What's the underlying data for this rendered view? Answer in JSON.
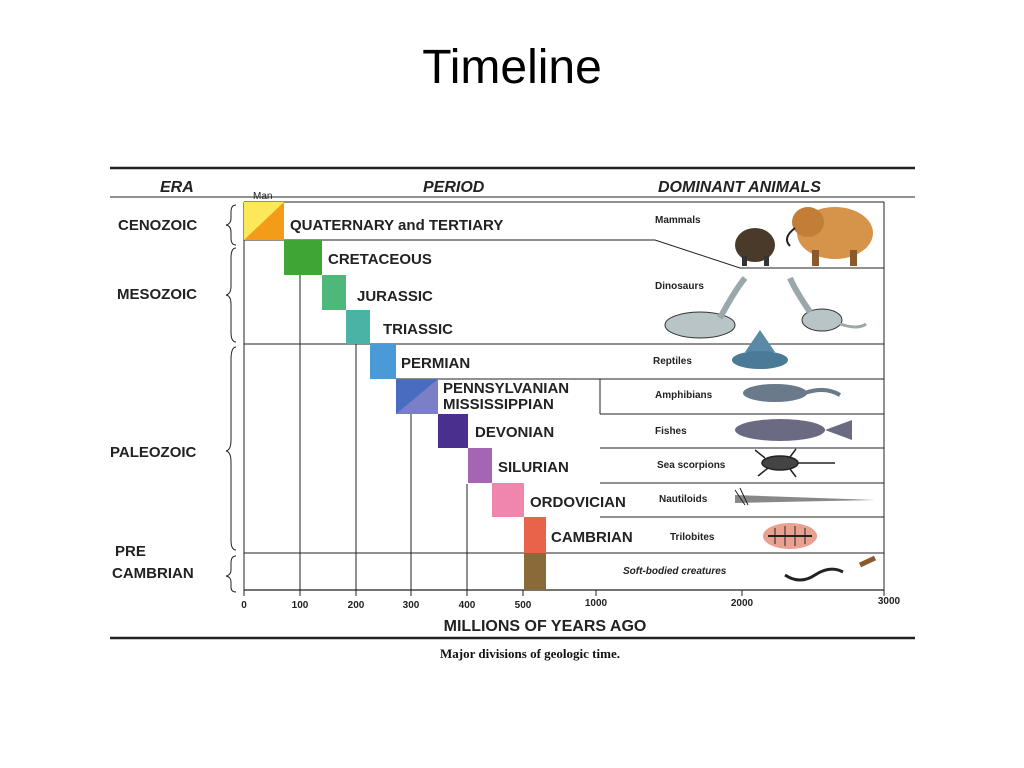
{
  "slide": {
    "title": "Timeline"
  },
  "header": {
    "era": "ERA",
    "man": "Man",
    "period": "PERIOD",
    "animals": "DOMINANT ANIMALS"
  },
  "eras": [
    {
      "name": "CENOZOIC"
    },
    {
      "name": "MESOZOIC"
    },
    {
      "name": "PALEOZOIC"
    },
    {
      "name": "PRE CAMBRIAN",
      "lines": [
        "PRE",
        "CAMBRIAN"
      ]
    }
  ],
  "periods": [
    {
      "name": "QUATERNARY and TERTIARY",
      "color": "#f4c430"
    },
    {
      "name": "CRETACEOUS",
      "color": "#3fa535"
    },
    {
      "name": "JURASSIC",
      "color": "#4db879"
    },
    {
      "name": "TRIASSIC",
      "color": "#4bb3a5"
    },
    {
      "name": "PERMIAN",
      "color": "#4a9ad8"
    },
    {
      "name": "PENNSYLVANIAN MISSISSIPPIAN",
      "lines": [
        "PENNSYLVANIAN",
        "MISSISSIPPIAN"
      ],
      "color": "#4a6cc0"
    },
    {
      "name": "DEVONIAN",
      "color": "#4b2f8f"
    },
    {
      "name": "SILURIAN",
      "color": "#a665b2"
    },
    {
      "name": "ORDOVICIAN",
      "color": "#ef86ad"
    },
    {
      "name": "CAMBRIAN",
      "color": "#e8634a"
    },
    {
      "name": "",
      "color": "#8b6a3a"
    }
  ],
  "animals": [
    {
      "name": "Mammals",
      "icon": "mammoth-icon"
    },
    {
      "name": "Dinosaurs",
      "icon": "dinosaur-icon"
    },
    {
      "name": "Reptiles",
      "icon": "reptile-icon"
    },
    {
      "name": "Amphibians",
      "icon": "amphibian-icon"
    },
    {
      "name": "Fishes",
      "icon": "fish-icon"
    },
    {
      "name": "Sea scorpions",
      "icon": "sea-scorpion-icon"
    },
    {
      "name": "Nautiloids",
      "icon": "nautiloid-icon"
    },
    {
      "name": "Trilobites",
      "icon": "trilobite-icon"
    },
    {
      "name": "Soft-bodied creatures",
      "icon": "worm-icon"
    }
  ],
  "axis": {
    "ticks": [
      "0",
      "100",
      "200",
      "300",
      "400",
      "500",
      "1000",
      "2000",
      "3000"
    ],
    "title": "MILLIONS OF YEARS AGO"
  },
  "caption": "Major divisions of geologic time."
}
